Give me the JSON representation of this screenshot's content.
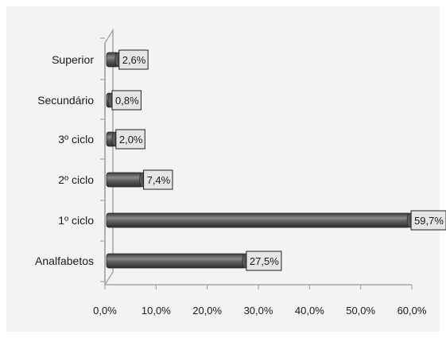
{
  "chart_data": {
    "type": "bar",
    "orientation": "horizontal",
    "title": "",
    "xlabel": "",
    "ylabel": "",
    "categories": [
      "Analfabetos",
      "1º ciclo",
      "2º ciclo",
      "3º ciclo",
      "Secundário",
      "Superior"
    ],
    "values": [
      27.5,
      59.7,
      7.4,
      2.0,
      0.8,
      2.6
    ],
    "data_labels": [
      "27,5%",
      "59,7%",
      "7,4%",
      "2,0%",
      "0,8%",
      "2,6%"
    ],
    "xlim": [
      0,
      60
    ],
    "x_ticks": [
      "0,0%",
      "10,0%",
      "20,0%",
      "30,0%",
      "40,0%",
      "50,0%",
      "60,0%"
    ],
    "grid": false,
    "legend": "none",
    "style": "3d-cylinder",
    "colors": {
      "bar": "#595959",
      "bar_highlight": "#8a8a8a",
      "bar_shadow": "#2e2e2e",
      "label_box": "#e6e6e6",
      "axis": "#a6a6a6",
      "plot_background": "#f3f3f3"
    }
  }
}
